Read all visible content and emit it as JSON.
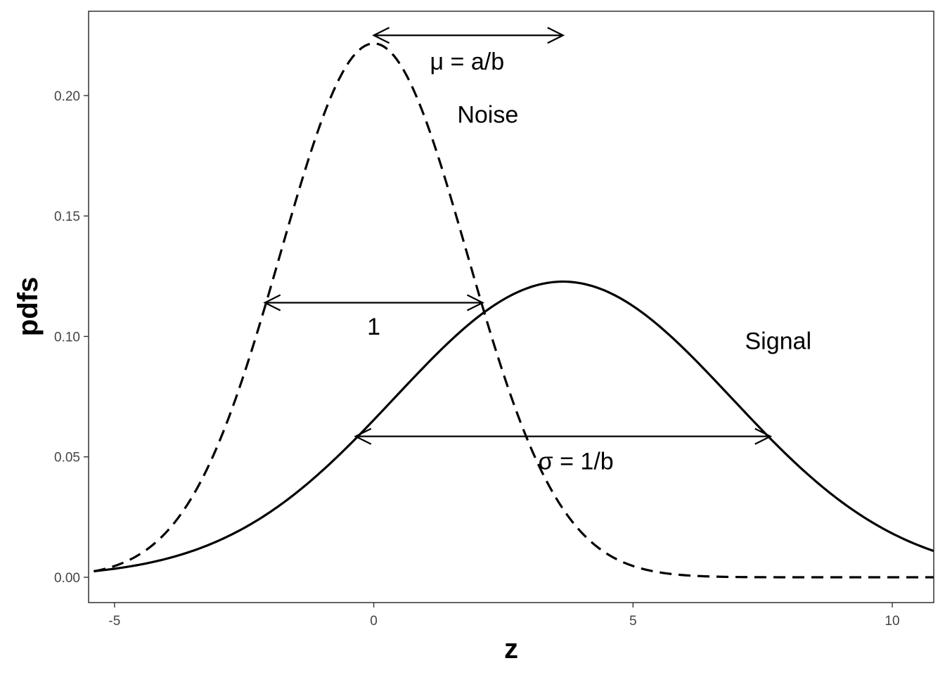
{
  "chart_data": {
    "type": "line",
    "xlabel": "z",
    "ylabel": "pdfs",
    "xlim": [
      -5.5,
      10.8
    ],
    "ylim": [
      -0.0105,
      0.235
    ],
    "x_ticks": [
      -5,
      0,
      5,
      10
    ],
    "x_tick_labels": [
      "-5",
      "0",
      "5",
      "10"
    ],
    "y_ticks": [
      0.0,
      0.05,
      0.1,
      0.15,
      0.2
    ],
    "y_tick_labels": [
      "0.00",
      "0.05",
      "0.10",
      "0.15",
      "0.20"
    ],
    "grid": false,
    "series": [
      {
        "name": "Noise",
        "distribution": "normal",
        "mean": 0,
        "sd": 1.8,
        "line_style": "dashed",
        "x_range": [
          -5.4,
          10.8
        ]
      },
      {
        "name": "Signal",
        "distribution": "normal",
        "mean": 3.65,
        "sd": 3.25,
        "line_style": "solid",
        "x_range": [
          -5.4,
          10.8
        ]
      }
    ],
    "annotations": [
      {
        "id": "mu",
        "label": "μ = a/b",
        "arrow_from": [
          0,
          0.225
        ],
        "arrow_to": [
          3.65,
          0.225
        ],
        "label_at": [
          1.8,
          0.214
        ]
      },
      {
        "id": "noise",
        "label": "Noise",
        "label_at": [
          2.2,
          0.192
        ]
      },
      {
        "id": "unit",
        "label": "1",
        "arrow_from": [
          -2.1,
          0.114
        ],
        "arrow_to": [
          2.1,
          0.114
        ],
        "label_at": [
          0,
          0.104
        ]
      },
      {
        "id": "signal",
        "label": "Signal",
        "label_at": [
          7.8,
          0.098
        ]
      },
      {
        "id": "sigma",
        "label": "σ = 1/b",
        "arrow_from": [
          -0.35,
          0.0585
        ],
        "arrow_to": [
          7.65,
          0.0585
        ],
        "label_at": [
          3.9,
          0.048
        ]
      }
    ]
  }
}
